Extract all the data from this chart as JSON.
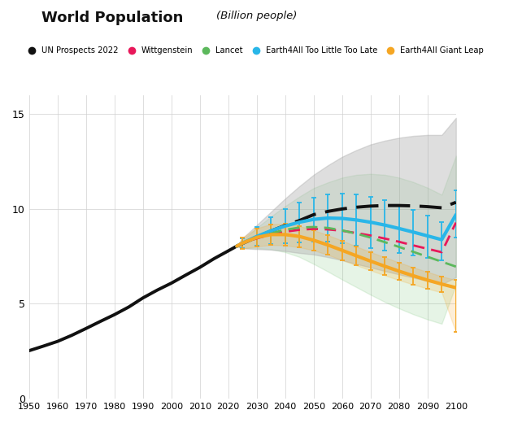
{
  "title": "World Population",
  "subtitle": "(Billion people)",
  "xlim": [
    1950,
    2100
  ],
  "ylim": [
    0,
    16
  ],
  "yticks": [
    0,
    5,
    10,
    15
  ],
  "xticks": [
    1950,
    1960,
    1970,
    1980,
    1990,
    2000,
    2010,
    2020,
    2030,
    2040,
    2050,
    2060,
    2070,
    2080,
    2090,
    2100
  ],
  "background_color": "#ffffff",
  "grid_color": "#d0d0d0",
  "series": {
    "historical": {
      "years": [
        1950,
        1955,
        1960,
        1965,
        1970,
        1975,
        1980,
        1985,
        1990,
        1995,
        2000,
        2005,
        2010,
        2015,
        2020,
        2023
      ],
      "values": [
        2.53,
        2.77,
        3.02,
        3.34,
        3.7,
        4.07,
        4.43,
        4.83,
        5.31,
        5.72,
        6.09,
        6.51,
        6.92,
        7.38,
        7.79,
        8.04
      ],
      "color": "#111111",
      "linewidth": 2.8
    },
    "un_median": {
      "years": [
        2023,
        2025,
        2030,
        2035,
        2040,
        2045,
        2050,
        2055,
        2060,
        2065,
        2070,
        2075,
        2080,
        2085,
        2090,
        2095,
        2100
      ],
      "values": [
        8.04,
        8.18,
        8.51,
        8.84,
        9.13,
        9.39,
        9.7,
        9.87,
        10.0,
        10.09,
        10.15,
        10.18,
        10.18,
        10.16,
        10.12,
        10.06,
        10.35
      ],
      "color": "#111111",
      "linewidth": 2.8,
      "linestyle": "--"
    },
    "un_upper": {
      "years": [
        2023,
        2025,
        2030,
        2035,
        2040,
        2045,
        2050,
        2055,
        2060,
        2065,
        2070,
        2075,
        2080,
        2085,
        2090,
        2095,
        2100
      ],
      "values": [
        8.04,
        8.45,
        9.15,
        9.85,
        10.55,
        11.2,
        11.8,
        12.3,
        12.75,
        13.1,
        13.4,
        13.6,
        13.75,
        13.85,
        13.9,
        13.9,
        14.8
      ]
    },
    "un_lower": {
      "years": [
        2023,
        2025,
        2030,
        2035,
        2040,
        2045,
        2050,
        2055,
        2060,
        2065,
        2070,
        2075,
        2080,
        2085,
        2090,
        2095,
        2100
      ],
      "values": [
        8.04,
        7.92,
        7.88,
        7.85,
        7.78,
        7.68,
        7.6,
        7.46,
        7.3,
        7.1,
        6.92,
        6.73,
        6.55,
        6.38,
        6.2,
        6.03,
        6.4
      ]
    },
    "lancet_upper": {
      "years": [
        2023,
        2025,
        2030,
        2035,
        2040,
        2045,
        2050,
        2055,
        2060,
        2065,
        2070,
        2075,
        2080,
        2085,
        2090,
        2095,
        2100
      ],
      "values": [
        8.04,
        8.35,
        9.0,
        9.6,
        10.15,
        10.65,
        11.1,
        11.4,
        11.65,
        11.8,
        11.85,
        11.8,
        11.65,
        11.42,
        11.12,
        10.75,
        12.8
      ]
    },
    "lancet_lower": {
      "years": [
        2023,
        2025,
        2030,
        2035,
        2040,
        2045,
        2050,
        2055,
        2060,
        2065,
        2070,
        2075,
        2080,
        2085,
        2090,
        2095,
        2100
      ],
      "values": [
        8.04,
        7.95,
        7.93,
        7.88,
        7.72,
        7.47,
        7.1,
        6.7,
        6.28,
        5.88,
        5.48,
        5.1,
        4.76,
        4.45,
        4.18,
        3.95,
        6.0
      ]
    },
    "wittgenstein": {
      "years": [
        2023,
        2025,
        2030,
        2035,
        2040,
        2045,
        2050,
        2055,
        2060,
        2065,
        2070,
        2075,
        2080,
        2085,
        2090,
        2095,
        2100
      ],
      "values": [
        8.04,
        8.18,
        8.45,
        8.65,
        8.8,
        8.9,
        8.95,
        8.92,
        8.85,
        8.73,
        8.6,
        8.44,
        8.27,
        8.08,
        7.9,
        7.72,
        9.28
      ],
      "color": "#e8185a",
      "linewidth": 2.0,
      "linestyle": "--"
    },
    "lancet": {
      "years": [
        2023,
        2025,
        2030,
        2035,
        2040,
        2045,
        2050,
        2055,
        2060,
        2065,
        2070,
        2075,
        2080,
        2085,
        2090,
        2095,
        2100
      ],
      "values": [
        8.04,
        8.18,
        8.48,
        8.72,
        8.9,
        9.02,
        9.05,
        9.0,
        8.87,
        8.7,
        8.49,
        8.25,
        8.0,
        7.74,
        7.48,
        7.22,
        6.96
      ],
      "color": "#5cb85c",
      "linewidth": 2.0,
      "linestyle": "--"
    },
    "e4a_tltl": {
      "years": [
        2023,
        2025,
        2030,
        2035,
        2040,
        2045,
        2050,
        2055,
        2060,
        2065,
        2070,
        2075,
        2080,
        2085,
        2090,
        2095,
        2100
      ],
      "values": [
        8.04,
        8.2,
        8.55,
        8.85,
        9.1,
        9.3,
        9.45,
        9.52,
        9.5,
        9.42,
        9.3,
        9.15,
        8.97,
        8.78,
        8.58,
        8.38,
        9.7
      ],
      "color": "#29b6e8",
      "linewidth": 3.0
    },
    "e4a_tltl_upper": {
      "years": [
        2023,
        2025,
        2030,
        2035,
        2040,
        2045,
        2050,
        2055,
        2060,
        2065,
        2070,
        2075,
        2080,
        2085,
        2090,
        2095,
        2100
      ],
      "values": [
        8.04,
        8.45,
        9.05,
        9.55,
        10.0,
        10.35,
        10.6,
        10.75,
        10.8,
        10.75,
        10.62,
        10.45,
        10.22,
        9.95,
        9.65,
        9.32,
        11.0
      ]
    },
    "e4a_tltl_lower": {
      "years": [
        2023,
        2025,
        2030,
        2035,
        2040,
        2045,
        2050,
        2055,
        2060,
        2065,
        2070,
        2075,
        2080,
        2085,
        2090,
        2095,
        2100
      ],
      "values": [
        8.04,
        7.95,
        8.05,
        8.15,
        8.2,
        8.25,
        8.3,
        8.28,
        8.2,
        8.08,
        7.95,
        7.82,
        7.68,
        7.55,
        7.42,
        7.28,
        8.5
      ]
    },
    "e4a_gl": {
      "years": [
        2023,
        2025,
        2030,
        2035,
        2040,
        2045,
        2050,
        2055,
        2060,
        2065,
        2070,
        2075,
        2080,
        2085,
        2090,
        2095,
        2100
      ],
      "values": [
        8.04,
        8.2,
        8.5,
        8.65,
        8.65,
        8.55,
        8.35,
        8.1,
        7.82,
        7.53,
        7.25,
        6.98,
        6.72,
        6.48,
        6.25,
        6.04,
        5.85
      ],
      "color": "#f5a623",
      "linewidth": 3.0
    },
    "e4a_gl_upper": {
      "years": [
        2023,
        2025,
        2030,
        2035,
        2040,
        2045,
        2050,
        2055,
        2060,
        2065,
        2070,
        2075,
        2080,
        2085,
        2090,
        2095,
        2100
      ],
      "values": [
        8.04,
        8.5,
        8.98,
        9.2,
        9.22,
        9.1,
        8.88,
        8.62,
        8.33,
        8.02,
        7.73,
        7.45,
        7.18,
        6.92,
        6.68,
        6.45,
        6.25
      ]
    },
    "e4a_gl_lower": {
      "years": [
        2023,
        2025,
        2030,
        2035,
        2040,
        2045,
        2050,
        2055,
        2060,
        2065,
        2070,
        2075,
        2080,
        2085,
        2090,
        2095,
        2100
      ],
      "values": [
        8.04,
        7.9,
        8.02,
        8.1,
        8.08,
        7.98,
        7.82,
        7.58,
        7.3,
        7.03,
        6.76,
        6.5,
        6.25,
        6.02,
        5.8,
        5.6,
        3.5
      ]
    }
  }
}
